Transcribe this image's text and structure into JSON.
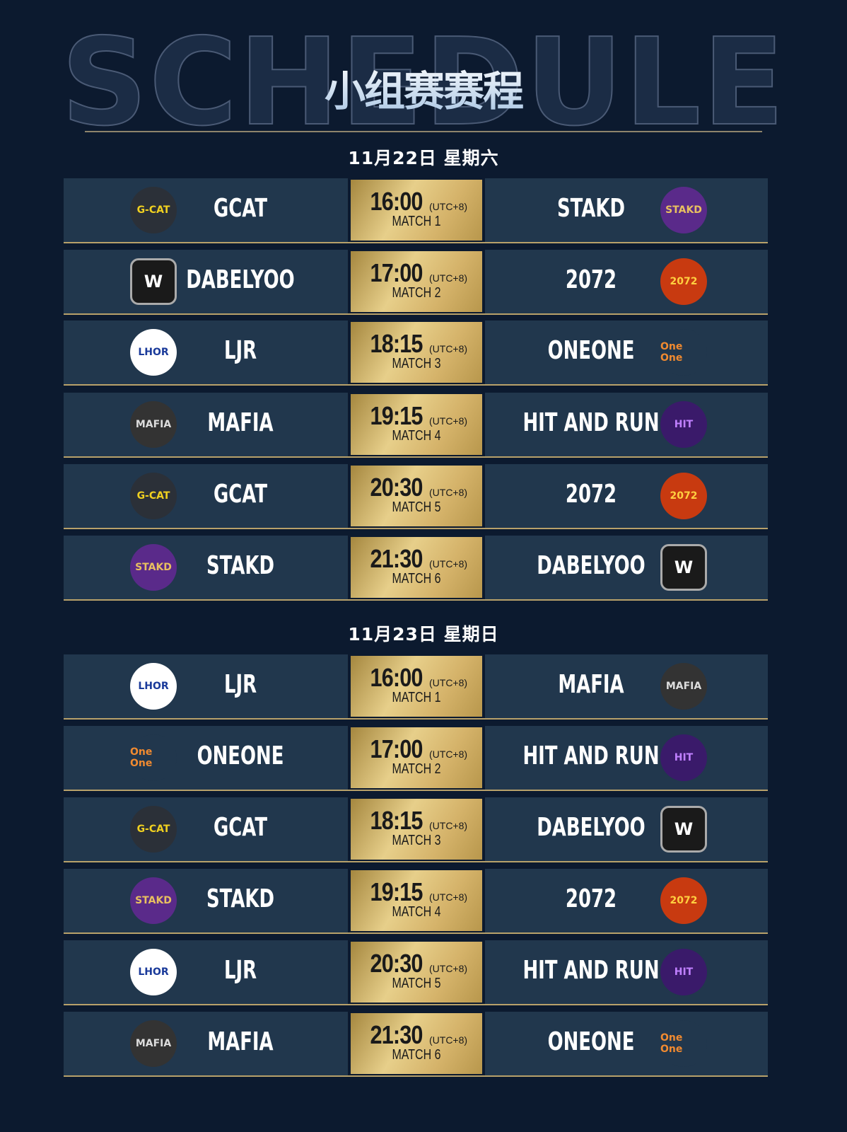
{
  "header": {
    "background_word": "SCHEDULE",
    "title": "小组赛赛程"
  },
  "logos": {
    "GCAT": {
      "text": "G-CAT",
      "bg": "#2b3038",
      "fg": "#f0d020"
    },
    "STAKD": {
      "text": "STAKD",
      "bg": "#5a2a8a",
      "fg": "#e8c060"
    },
    "DABELYOO": {
      "text": "W",
      "bg": "#1a1a1a",
      "fg": "#ffffff"
    },
    "2072": {
      "text": "2072",
      "bg": "#c83a10",
      "fg": "#ffd040"
    },
    "LJR": {
      "text": "LHOR",
      "bg": "#ffffff",
      "fg": "#1a3a9a"
    },
    "ONEONE": {
      "text": "One One",
      "bg": "#21374d",
      "fg": "#f08a30"
    },
    "MAFIA": {
      "text": "MAFIA",
      "bg": "#333",
      "fg": "#ddd"
    },
    "HIT AND RUN": {
      "text": "HIT",
      "bg": "#3a1a6a",
      "fg": "#c080ff"
    }
  },
  "days": [
    {
      "date": "11月22日 星期六",
      "matches": [
        {
          "home": "GCAT",
          "away": "STAKD",
          "time": "16:00",
          "tz": "(UTC+8)",
          "match": "MATCH 1"
        },
        {
          "home": "DABELYOO",
          "away": "2072",
          "time": "17:00",
          "tz": "(UTC+8)",
          "match": "MATCH 2"
        },
        {
          "home": "LJR",
          "away": "ONEONE",
          "time": "18:15",
          "tz": "(UTC+8)",
          "match": "MATCH 3"
        },
        {
          "home": "MAFIA",
          "away": "HIT AND RUN",
          "time": "19:15",
          "tz": "(UTC+8)",
          "match": "MATCH 4"
        },
        {
          "home": "GCAT",
          "away": "2072",
          "time": "20:30",
          "tz": "(UTC+8)",
          "match": "MATCH 5"
        },
        {
          "home": "STAKD",
          "away": "DABELYOO",
          "time": "21:30",
          "tz": "(UTC+8)",
          "match": "MATCH 6"
        }
      ]
    },
    {
      "date": "11月23日 星期日",
      "matches": [
        {
          "home": "LJR",
          "away": "MAFIA",
          "time": "16:00",
          "tz": "(UTC+8)",
          "match": "MATCH 1"
        },
        {
          "home": "ONEONE",
          "away": "HIT AND RUN",
          "time": "17:00",
          "tz": "(UTC+8)",
          "match": "MATCH 2"
        },
        {
          "home": "GCAT",
          "away": "DABELYOO",
          "time": "18:15",
          "tz": "(UTC+8)",
          "match": "MATCH 3"
        },
        {
          "home": "STAKD",
          "away": "2072",
          "time": "19:15",
          "tz": "(UTC+8)",
          "match": "MATCH 4"
        },
        {
          "home": "LJR",
          "away": "HIT AND RUN",
          "time": "20:30",
          "tz": "(UTC+8)",
          "match": "MATCH 5"
        },
        {
          "home": "MAFIA",
          "away": "ONEONE",
          "time": "21:30",
          "tz": "(UTC+8)",
          "match": "MATCH 6"
        }
      ]
    }
  ]
}
